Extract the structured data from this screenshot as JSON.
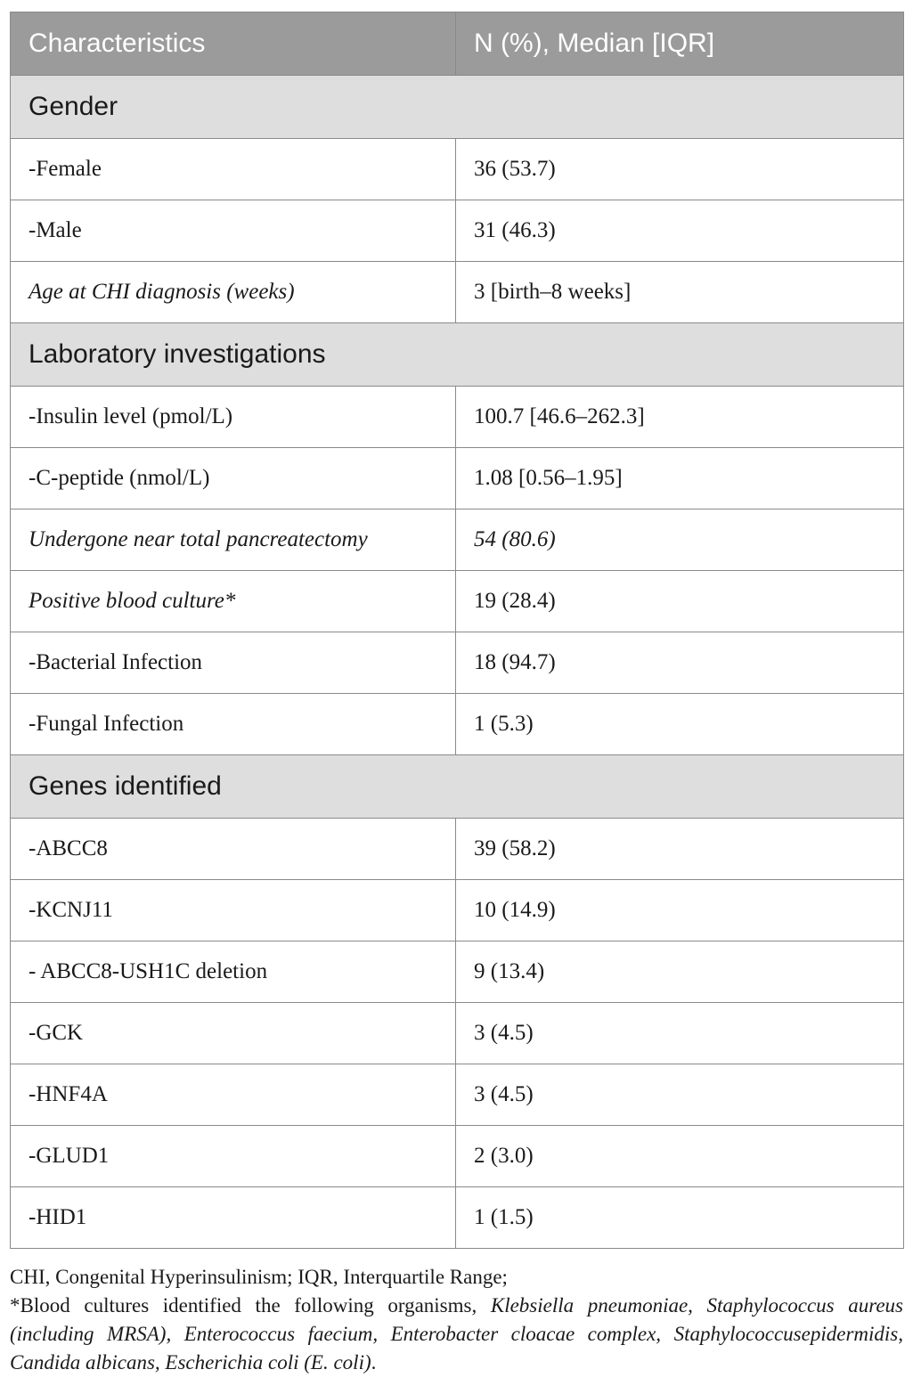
{
  "table": {
    "headers": [
      "Characteristics",
      "N (%), Median [IQR]"
    ],
    "rows": [
      {
        "kind": "section",
        "label": "Gender"
      },
      {
        "kind": "row",
        "label": "-Female",
        "value": "36 (53.7)"
      },
      {
        "kind": "row",
        "label": "-Male",
        "value": "31 (46.3)"
      },
      {
        "kind": "row",
        "label": "Age at CHI diagnosis (weeks)",
        "value": "3 [birth–8 weeks]",
        "label_italic": true
      },
      {
        "kind": "section",
        "label": "Laboratory investigations"
      },
      {
        "kind": "row",
        "label": "-Insulin level (pmol/L)",
        "value": "100.7 [46.6–262.3]"
      },
      {
        "kind": "row",
        "label": "-C-peptide (nmol/L)",
        "value": "1.08 [0.56–1.95]"
      },
      {
        "kind": "row",
        "label": "Undergone near total pancreatectomy",
        "value": "54 (80.6)",
        "label_italic": true,
        "value_italic": true
      },
      {
        "kind": "row",
        "label": "Positive blood culture*",
        "value": "19 (28.4)",
        "label_italic": true
      },
      {
        "kind": "row",
        "label": "-Bacterial Infection",
        "value": "18 (94.7)"
      },
      {
        "kind": "row",
        "label": "-Fungal Infection",
        "value": "1 (5.3)"
      },
      {
        "kind": "section",
        "label": "Genes identified"
      },
      {
        "kind": "row",
        "label": "-ABCC8",
        "value": "39 (58.2)"
      },
      {
        "kind": "row",
        "label": "-KCNJ11",
        "value": "10 (14.9)"
      },
      {
        "kind": "row",
        "label": "- ABCC8-USH1C deletion",
        "value": "9 (13.4)"
      },
      {
        "kind": "row",
        "label": "-GCK",
        "value": "3 (4.5)"
      },
      {
        "kind": "row",
        "label": "-HNF4A",
        "value": "3 (4.5)"
      },
      {
        "kind": "row",
        "label": "-GLUD1",
        "value": "2 (3.0)"
      },
      {
        "kind": "row",
        "label": "-HID1",
        "value": "1 (1.5)"
      }
    ]
  },
  "footnotes": {
    "abbreviations": "CHI, Congenital Hyperinsulinism; IQR, Interquartile Range;",
    "organisms_intro": "*Blood cultures identified the following organisms, ",
    "organisms": "Klebsiella pneumoniae, Staphylococcus aureus (including MRSA), Enterococcus faecium, Enterobacter cloacae complex, Staphylococcusepidermidis, Candida albicans, Escherichia coli (E. coli)",
    "organisms_end": "."
  },
  "colors": {
    "header_bg": "#9b9b9b",
    "section_bg": "#dedede",
    "border": "#8a8a8a"
  }
}
